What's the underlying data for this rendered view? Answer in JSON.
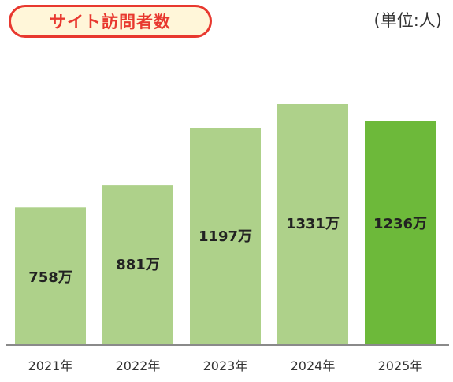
{
  "header": {
    "title": "サイト訪問者数",
    "unit": "(単位:人)"
  },
  "colors": {
    "bar": "#aed18a",
    "highlight_bar": "#6db93a",
    "baseline": "#8a8a8a",
    "title_border": "#e8382f",
    "title_bg": "#fff6d9"
  },
  "chart_data": {
    "type": "bar",
    "title": "サイト訪問者数",
    "unit_label": "(単位:人)",
    "categories": [
      "2021年",
      "2022年",
      "2023年",
      "2024年",
      "2025年"
    ],
    "series": [
      {
        "values": [
          758,
          881,
          1197,
          1331,
          1236
        ]
      }
    ],
    "value_unit": "万",
    "data_labels": [
      "758万",
      "881万",
      "1197万",
      "1331万",
      "1236万"
    ],
    "highlight_index": 4,
    "ylim": [
      0,
      1400
    ],
    "grid": false,
    "legend": "none"
  }
}
